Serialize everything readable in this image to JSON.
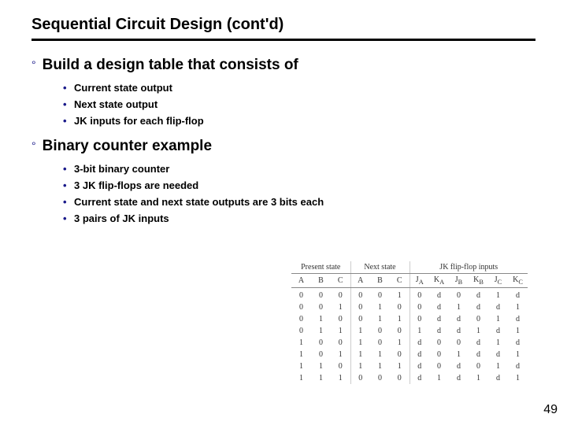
{
  "title": "Sequential Circuit Design (cont'd)",
  "section1": {
    "heading": "Build a design table that consists of",
    "items": [
      "Current state output",
      "Next state output",
      "JK inputs for each flip-flop"
    ]
  },
  "section2": {
    "heading": "Binary counter example",
    "items": [
      "3-bit binary counter",
      "3 JK flip-flops are needed",
      "Current state and next state outputs are 3 bits each",
      "3 pairs of JK inputs"
    ]
  },
  "table": {
    "groups": [
      "Present state",
      "Next state",
      "JK flip-flop inputs"
    ],
    "cols": [
      "A",
      "B",
      "C",
      "A",
      "B",
      "C",
      "J",
      "K",
      "J",
      "K",
      "J",
      "K"
    ],
    "colsub": [
      "",
      "",
      "",
      "",
      "",
      "",
      "A",
      "A",
      "B",
      "B",
      "C",
      "C"
    ],
    "rows": [
      [
        "0",
        "0",
        "0",
        "0",
        "0",
        "1",
        "0",
        "d",
        "0",
        "d",
        "1",
        "d"
      ],
      [
        "0",
        "0",
        "1",
        "0",
        "1",
        "0",
        "0",
        "d",
        "1",
        "d",
        "d",
        "1"
      ],
      [
        "0",
        "1",
        "0",
        "0",
        "1",
        "1",
        "0",
        "d",
        "d",
        "0",
        "1",
        "d"
      ],
      [
        "0",
        "1",
        "1",
        "1",
        "0",
        "0",
        "1",
        "d",
        "d",
        "1",
        "d",
        "1"
      ],
      [
        "1",
        "0",
        "0",
        "1",
        "0",
        "1",
        "d",
        "0",
        "0",
        "d",
        "1",
        "d"
      ],
      [
        "1",
        "0",
        "1",
        "1",
        "1",
        "0",
        "d",
        "0",
        "1",
        "d",
        "d",
        "1"
      ],
      [
        "1",
        "1",
        "0",
        "1",
        "1",
        "1",
        "d",
        "0",
        "d",
        "0",
        "1",
        "d"
      ],
      [
        "1",
        "1",
        "1",
        "0",
        "0",
        "0",
        "d",
        "1",
        "d",
        "1",
        "d",
        "1"
      ]
    ]
  },
  "pageNumber": "49",
  "colors": {
    "accent": "#1a1a8a",
    "text": "#000000",
    "tableText": "#333333",
    "border": "#888888"
  }
}
